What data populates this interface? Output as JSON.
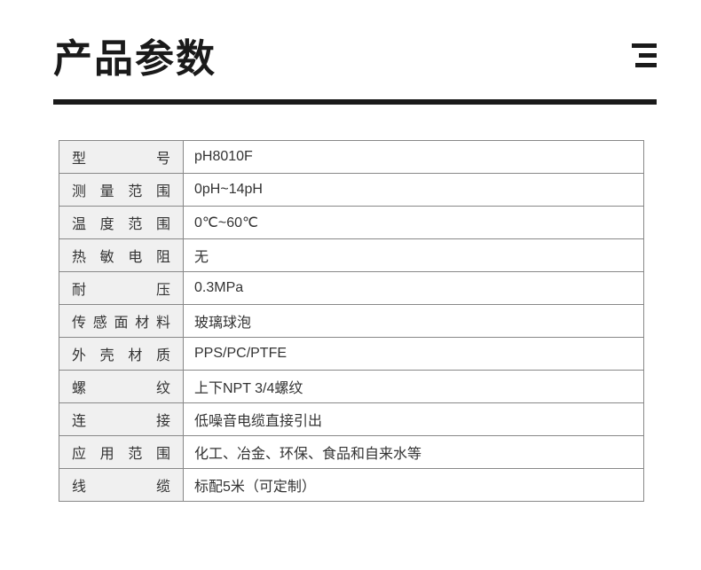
{
  "header": {
    "title": "产品参数"
  },
  "table": {
    "columns": [
      "label",
      "value"
    ],
    "label_bg": "#f0f0f0",
    "value_bg": "#ffffff",
    "border_color": "#888888",
    "font_size": 16,
    "rows": [
      {
        "label": "型　　号",
        "value": "pH8010F"
      },
      {
        "label": "测 量 范 围",
        "value": "0pH~14pH"
      },
      {
        "label": "温 度 范 围",
        "value": "0℃~60℃"
      },
      {
        "label": "热 敏 电 阻",
        "value": "无"
      },
      {
        "label": "耐　　压",
        "value": "0.3MPa"
      },
      {
        "label": "传感面材料",
        "value": "玻璃球泡"
      },
      {
        "label": "外 壳 材 质",
        "value": "PPS/PC/PTFE"
      },
      {
        "label": "螺　　纹",
        "value": "上下NPT 3/4螺纹"
      },
      {
        "label": "连　　接",
        "value": "低噪音电缆直接引出"
      },
      {
        "label": "应 用 范 围",
        "value": "化工、冶金、环保、食品和自来水等"
      },
      {
        "label": "线　　缆",
        "value": "标配5米（可定制）"
      }
    ]
  },
  "styling": {
    "title_color": "#1a1a1a",
    "title_fontsize": 44,
    "divider_color": "#1a1a1a",
    "divider_height": 6,
    "background": "#ffffff"
  }
}
